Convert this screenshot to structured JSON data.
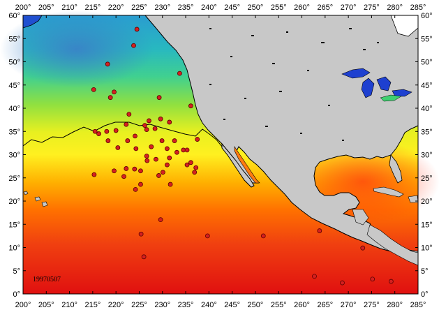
{
  "date_label": "19970507",
  "x_axis": {
    "ticks": [
      "200°",
      "205°",
      "210°",
      "215°",
      "220°",
      "225°",
      "230°",
      "235°",
      "240°",
      "245°",
      "250°",
      "255°",
      "260°",
      "265°",
      "270°",
      "275°",
      "280°",
      "285°"
    ],
    "range": [
      200,
      285
    ]
  },
  "y_axis": {
    "ticks": [
      "0°",
      "5°",
      "10°",
      "15°",
      "20°",
      "25°",
      "30°",
      "35°",
      "40°",
      "45°",
      "50°",
      "55°",
      "60°"
    ],
    "range": [
      0,
      60
    ]
  },
  "colors": {
    "land": "#c8c8c8",
    "coastline": "#000000",
    "marker_fill": "#d42020",
    "marker_stroke": "#5a0000",
    "frame": "#000000",
    "sst_cold": "#4a90d0",
    "sst_cool": "#20c0a0",
    "sst_mild": "#80e040",
    "sst_warm": "#f0f020",
    "sst_hot": "#ff8000",
    "sst_hottest": "#e01010"
  },
  "stations": [
    {
      "lon": 224.5,
      "lat": 57
    },
    {
      "lon": 223.8,
      "lat": 53.5
    },
    {
      "lon": 218.2,
      "lat": 49.5
    },
    {
      "lon": 233.7,
      "lat": 47.5
    },
    {
      "lon": 219.6,
      "lat": 43.5
    },
    {
      "lon": 215.2,
      "lat": 44
    },
    {
      "lon": 218.8,
      "lat": 42.3
    },
    {
      "lon": 229.3,
      "lat": 42.3
    },
    {
      "lon": 236.1,
      "lat": 40.5
    },
    {
      "lon": 222.8,
      "lat": 38.7
    },
    {
      "lon": 227.1,
      "lat": 37.3
    },
    {
      "lon": 229.6,
      "lat": 37.7
    },
    {
      "lon": 222.2,
      "lat": 36.5
    },
    {
      "lon": 226.2,
      "lat": 36.3
    },
    {
      "lon": 231.5,
      "lat": 37
    },
    {
      "lon": 228.4,
      "lat": 35.6
    },
    {
      "lon": 226.6,
      "lat": 35.4
    },
    {
      "lon": 220.0,
      "lat": 35.2
    },
    {
      "lon": 215.5,
      "lat": 35
    },
    {
      "lon": 216.3,
      "lat": 34.5
    },
    {
      "lon": 218.0,
      "lat": 35
    },
    {
      "lon": 224.1,
      "lat": 34
    },
    {
      "lon": 222.5,
      "lat": 33
    },
    {
      "lon": 218.3,
      "lat": 33
    },
    {
      "lon": 229.9,
      "lat": 33
    },
    {
      "lon": 232.6,
      "lat": 33
    },
    {
      "lon": 237.5,
      "lat": 33.3
    },
    {
      "lon": 220.4,
      "lat": 31.5
    },
    {
      "lon": 224.3,
      "lat": 31.3
    },
    {
      "lon": 227.6,
      "lat": 31.7
    },
    {
      "lon": 231.0,
      "lat": 31.3
    },
    {
      "lon": 234.5,
      "lat": 31
    },
    {
      "lon": 235.3,
      "lat": 31
    },
    {
      "lon": 233.1,
      "lat": 30.5
    },
    {
      "lon": 226.6,
      "lat": 29.7
    },
    {
      "lon": 231.5,
      "lat": 29.3
    },
    {
      "lon": 228.6,
      "lat": 29
    },
    {
      "lon": 226.7,
      "lat": 28.7
    },
    {
      "lon": 236.1,
      "lat": 28.3
    },
    {
      "lon": 235.3,
      "lat": 27.8
    },
    {
      "lon": 231.0,
      "lat": 27.8
    },
    {
      "lon": 237.2,
      "lat": 27.2
    },
    {
      "lon": 222.2,
      "lat": 27
    },
    {
      "lon": 224.0,
      "lat": 26.9
    },
    {
      "lon": 219.6,
      "lat": 26.5
    },
    {
      "lon": 225.3,
      "lat": 26.5
    },
    {
      "lon": 230.1,
      "lat": 26.2
    },
    {
      "lon": 236.9,
      "lat": 26.2
    },
    {
      "lon": 215.3,
      "lat": 25.7
    },
    {
      "lon": 221.7,
      "lat": 25.3
    },
    {
      "lon": 229.2,
      "lat": 25.5
    },
    {
      "lon": 225.3,
      "lat": 23.6
    },
    {
      "lon": 231.7,
      "lat": 23.6
    },
    {
      "lon": 224.2,
      "lat": 22.5
    },
    {
      "lon": 229.6,
      "lat": 16
    },
    {
      "lon": 225.4,
      "lat": 12.9
    },
    {
      "lon": 226.0,
      "lat": 8
    },
    {
      "lon": 239.7,
      "lat": 12.5
    },
    {
      "lon": 251.7,
      "lat": 12.5
    },
    {
      "lon": 263.8,
      "lat": 13.6
    },
    {
      "lon": 273.1,
      "lat": 9.9
    },
    {
      "lon": 262.7,
      "lat": 3.8
    },
    {
      "lon": 268.7,
      "lat": 2.4
    },
    {
      "lon": 275.2,
      "lat": 3.2
    },
    {
      "lon": 279.2,
      "lat": 2.7
    }
  ]
}
